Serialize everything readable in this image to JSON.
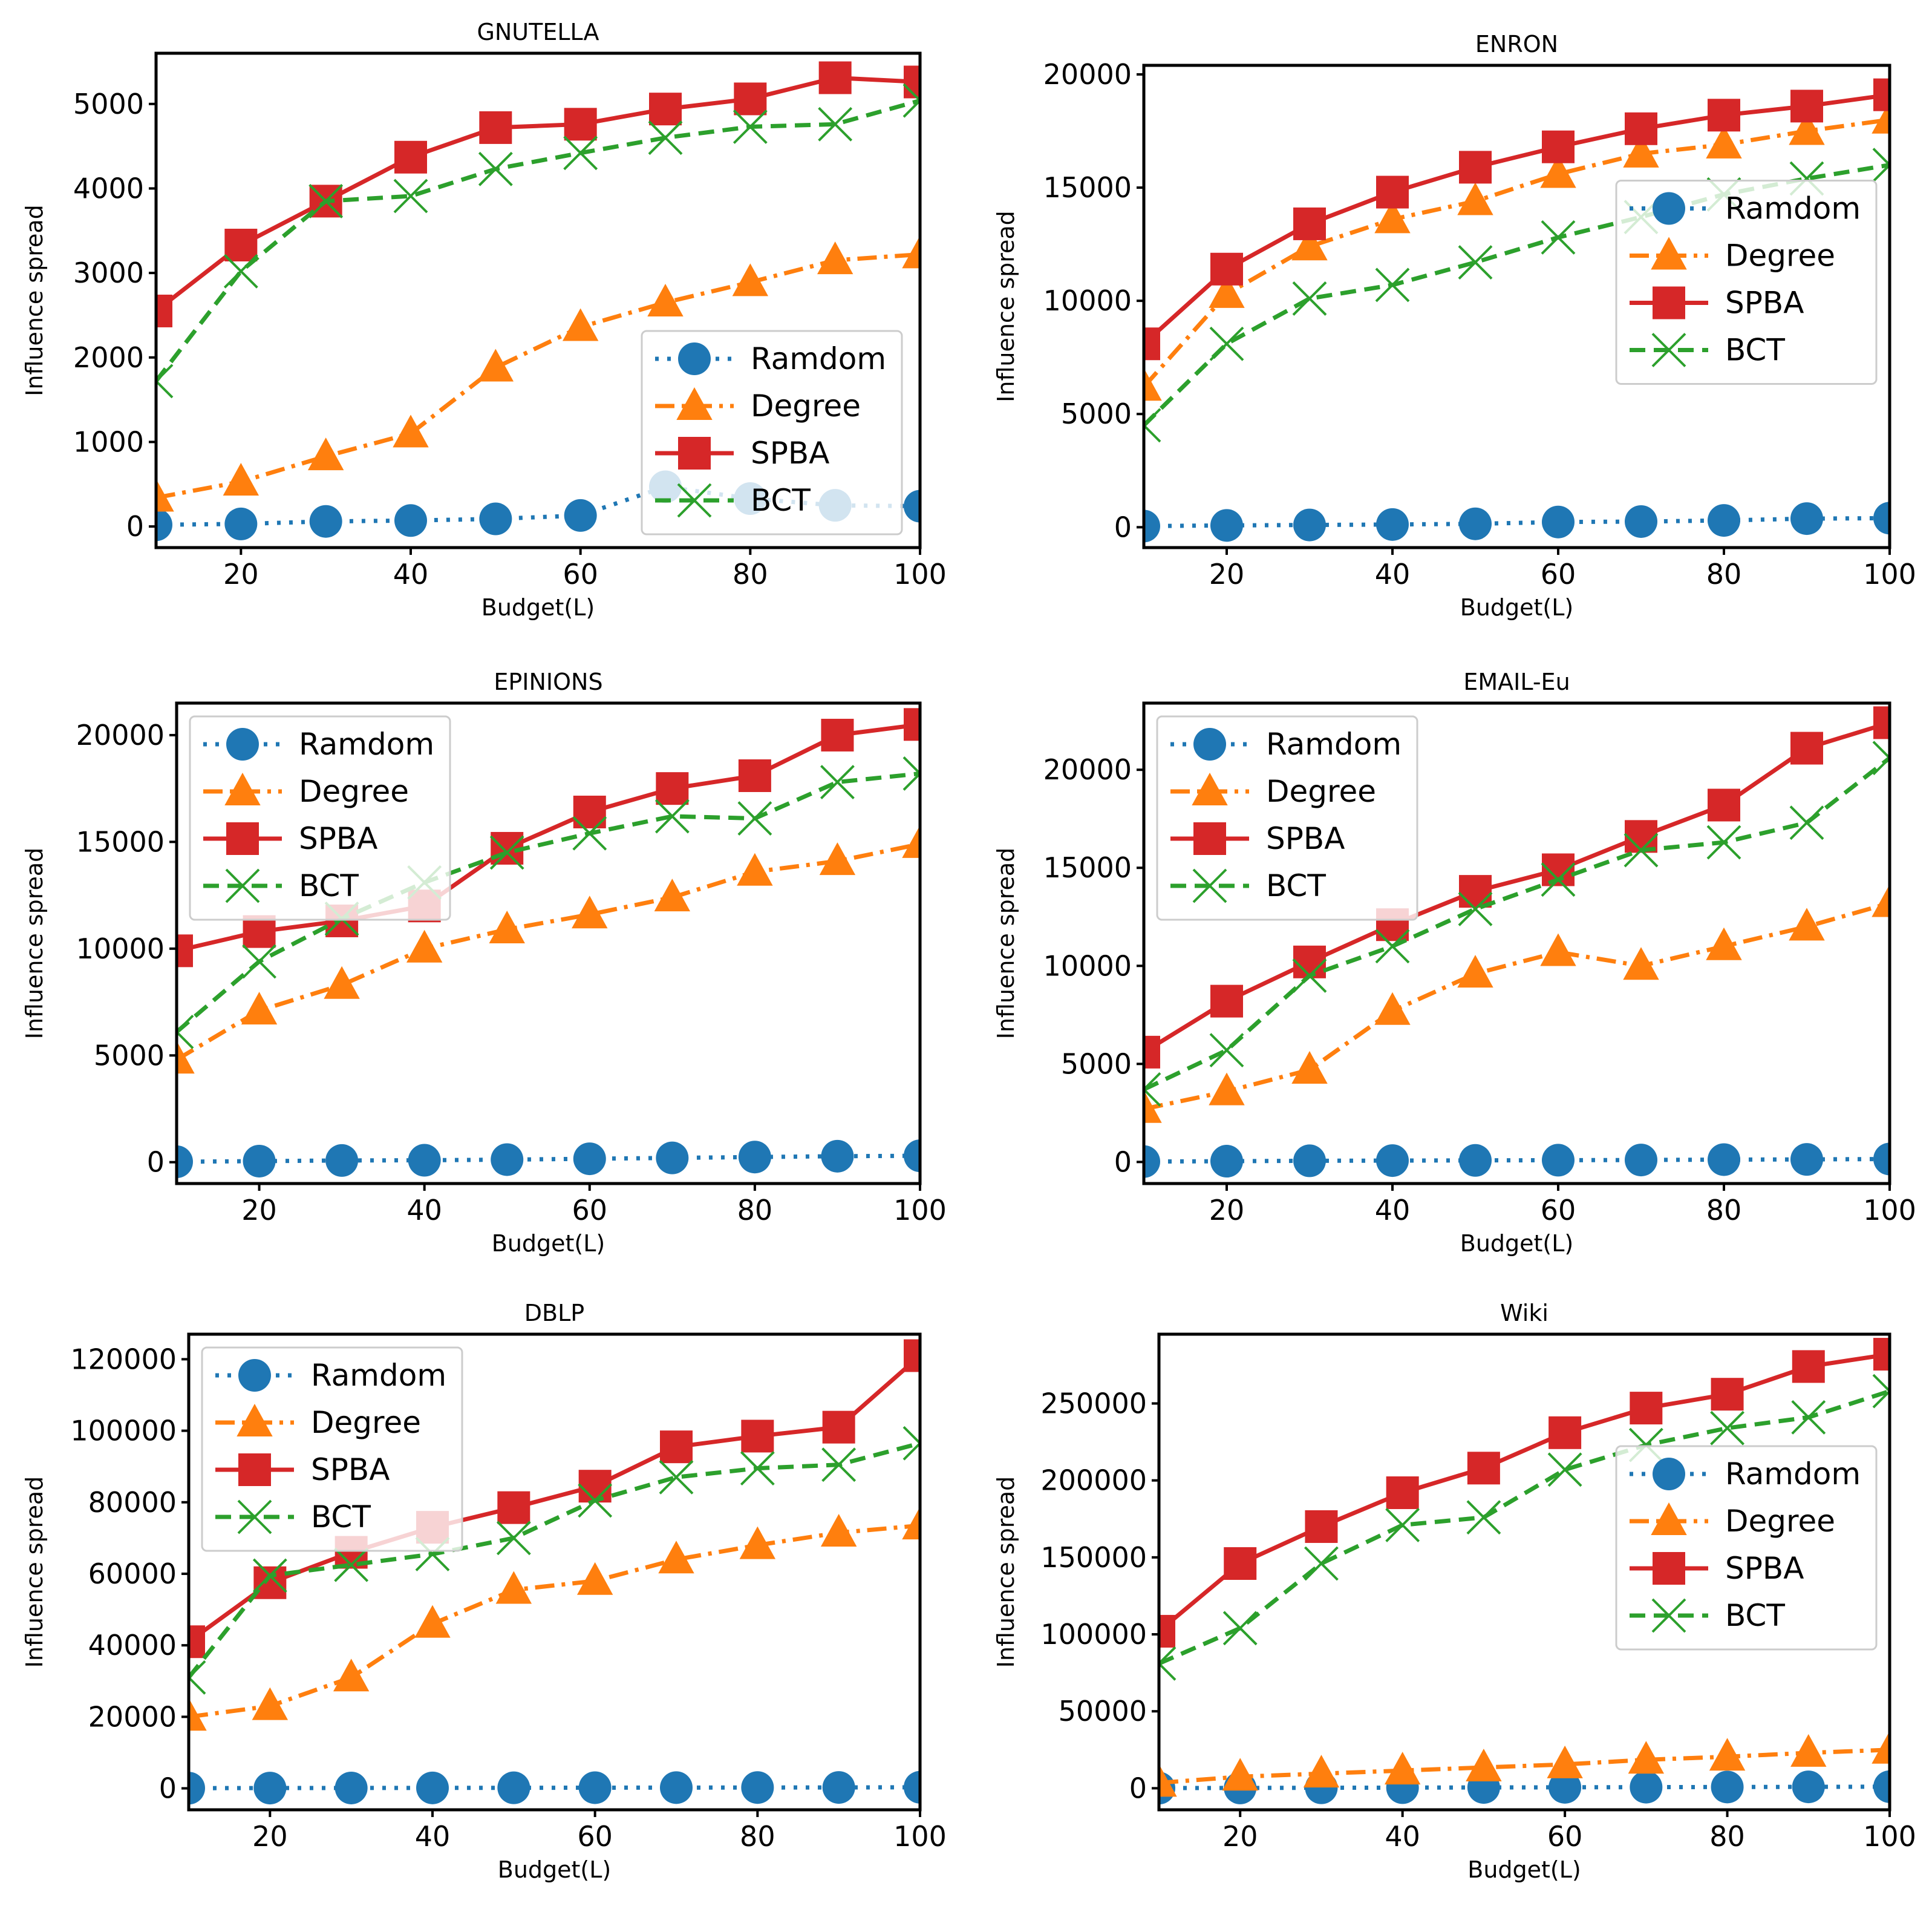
{
  "colors": {
    "Ramdom": "#1f77b4",
    "Degree": "#ff7f0e",
    "SPBA": "#d62728",
    "BCT": "#2ca02c"
  },
  "chart_data": [
    {
      "type": "line",
      "title": "GNUTELLA",
      "xlabel": "Budget(L)",
      "ylabel": "Influence spread",
      "x": [
        10,
        20,
        30,
        40,
        50,
        60,
        70,
        80,
        90,
        100
      ],
      "xlim": [
        10,
        100
      ],
      "ylim": [
        -250,
        5600
      ],
      "xticks": [
        20,
        40,
        60,
        80,
        100
      ],
      "yticks": [
        0,
        1000,
        2000,
        3000,
        4000,
        5000
      ],
      "legend_position": "lower-right",
      "series": [
        {
          "name": "Ramdom",
          "values": [
            20,
            30,
            60,
            70,
            90,
            130,
            470,
            330,
            250,
            240
          ]
        },
        {
          "name": "Degree",
          "values": [
            340,
            530,
            830,
            1100,
            1880,
            2360,
            2650,
            2890,
            3150,
            3220
          ]
        },
        {
          "name": "SPBA",
          "values": [
            2550,
            3330,
            3850,
            4370,
            4720,
            4760,
            4940,
            5060,
            5310,
            5260
          ]
        },
        {
          "name": "BCT",
          "values": [
            1720,
            3020,
            3850,
            3910,
            4230,
            4420,
            4600,
            4730,
            4760,
            5040
          ]
        }
      ]
    },
    {
      "type": "line",
      "title": "ENRON",
      "xlabel": "Budget(L)",
      "ylabel": "Influence spread",
      "x": [
        10,
        20,
        30,
        40,
        50,
        60,
        70,
        80,
        90,
        100
      ],
      "xlim": [
        10,
        100
      ],
      "ylim": [
        -900,
        20400
      ],
      "xticks": [
        20,
        40,
        60,
        80,
        100
      ],
      "yticks": [
        0,
        5000,
        10000,
        15000,
        20000
      ],
      "legend_position": "center-right",
      "series": [
        {
          "name": "Ramdom",
          "values": [
            50,
            80,
            100,
            120,
            150,
            230,
            250,
            300,
            380,
            400
          ]
        },
        {
          "name": "Degree",
          "values": [
            6200,
            10300,
            12400,
            13600,
            14400,
            15600,
            16500,
            16900,
            17500,
            18000
          ]
        },
        {
          "name": "SPBA",
          "values": [
            8100,
            11400,
            13400,
            14800,
            15900,
            16800,
            17600,
            18200,
            18600,
            19100
          ]
        },
        {
          "name": "BCT",
          "values": [
            4500,
            8100,
            10100,
            10700,
            11700,
            12800,
            13700,
            14700,
            15400,
            16000
          ]
        }
      ]
    },
    {
      "type": "line",
      "title": "EPINIONS",
      "xlabel": "Budget(L)",
      "ylabel": "Influence spread",
      "x": [
        10,
        20,
        30,
        40,
        50,
        60,
        70,
        80,
        90,
        100
      ],
      "xlim": [
        10,
        100
      ],
      "ylim": [
        -1000,
        21500
      ],
      "xticks": [
        20,
        40,
        60,
        80,
        100
      ],
      "yticks": [
        0,
        5000,
        10000,
        15000,
        20000
      ],
      "legend_position": "upper-left",
      "series": [
        {
          "name": "Ramdom",
          "values": [
            20,
            50,
            80,
            90,
            120,
            160,
            200,
            240,
            280,
            300
          ]
        },
        {
          "name": "Degree",
          "values": [
            4800,
            7100,
            8300,
            10000,
            10900,
            11600,
            12400,
            13600,
            14100,
            14900
          ]
        },
        {
          "name": "SPBA",
          "values": [
            9900,
            10800,
            11300,
            12000,
            14700,
            16400,
            17500,
            18100,
            20000,
            20500
          ]
        },
        {
          "name": "BCT",
          "values": [
            6100,
            9400,
            11400,
            13100,
            14500,
            15400,
            16200,
            16100,
            17800,
            18200
          ]
        }
      ]
    },
    {
      "type": "line",
      "title": "EMAIL-Eu",
      "xlabel": "Budget(L)",
      "ylabel": "Influence spread",
      "x": [
        10,
        20,
        30,
        40,
        50,
        60,
        70,
        80,
        90,
        100
      ],
      "xlim": [
        10,
        100
      ],
      "ylim": [
        -1100,
        23400
      ],
      "xticks": [
        20,
        40,
        60,
        80,
        100
      ],
      "yticks": [
        0,
        5000,
        10000,
        15000,
        20000
      ],
      "legend_position": "upper-left",
      "series": [
        {
          "name": "Ramdom",
          "values": [
            20,
            40,
            60,
            70,
            80,
            90,
            100,
            120,
            130,
            150
          ]
        },
        {
          "name": "Degree",
          "values": [
            2700,
            3600,
            4700,
            7700,
            9600,
            10700,
            10000,
            11000,
            12000,
            13200
          ]
        },
        {
          "name": "SPBA",
          "values": [
            5600,
            8200,
            10200,
            12100,
            13800,
            14900,
            16600,
            18200,
            21100,
            22400
          ]
        },
        {
          "name": "BCT",
          "values": [
            3700,
            5700,
            9500,
            11000,
            12900,
            14400,
            15900,
            16300,
            17300,
            20600
          ]
        }
      ]
    },
    {
      "type": "line",
      "title": "DBLP",
      "xlabel": "Budget(L)",
      "ylabel": "Influence spread",
      "x": [
        10,
        20,
        30,
        40,
        50,
        60,
        70,
        80,
        90,
        100
      ],
      "xlim": [
        10,
        100
      ],
      "ylim": [
        -6000,
        127000
      ],
      "xticks": [
        20,
        40,
        60,
        80,
        100
      ],
      "yticks": [
        0,
        20000,
        40000,
        60000,
        80000,
        100000,
        120000
      ],
      "legend_position": "upper-left",
      "series": [
        {
          "name": "Ramdom",
          "values": [
            50,
            80,
            100,
            120,
            150,
            180,
            200,
            220,
            250,
            300
          ]
        },
        {
          "name": "Degree",
          "values": [
            20000,
            23000,
            31000,
            46000,
            55500,
            58000,
            64000,
            68000,
            71500,
            73500
          ]
        },
        {
          "name": "SPBA",
          "values": [
            41000,
            57500,
            66000,
            73000,
            78500,
            84500,
            95500,
            98500,
            101000,
            121000
          ]
        },
        {
          "name": "BCT",
          "values": [
            31000,
            59500,
            62500,
            65500,
            70000,
            80500,
            87000,
            89500,
            90500,
            96500
          ]
        }
      ]
    },
    {
      "type": "line",
      "title": "Wiki",
      "xlabel": "Budget(L)",
      "ylabel": "Influence spread",
      "x": [
        10,
        20,
        30,
        40,
        50,
        60,
        70,
        80,
        90,
        100
      ],
      "xlim": [
        10,
        100
      ],
      "ylim": [
        -14000,
        295000
      ],
      "xticks": [
        20,
        40,
        60,
        80,
        100
      ],
      "yticks": [
        0,
        50000,
        100000,
        150000,
        200000,
        250000
      ],
      "legend_position": "center-right",
      "series": [
        {
          "name": "Ramdom",
          "values": [
            100,
            200,
            300,
            400,
            500,
            600,
            700,
            800,
            900,
            1000
          ]
        },
        {
          "name": "Degree",
          "values": [
            3500,
            7500,
            9500,
            11500,
            13500,
            15500,
            18500,
            20500,
            23000,
            25000
          ]
        },
        {
          "name": "SPBA",
          "values": [
            102000,
            146000,
            170000,
            192000,
            208000,
            231000,
            247000,
            256000,
            274000,
            282000
          ]
        },
        {
          "name": "BCT",
          "values": [
            81000,
            104000,
            146000,
            171000,
            176000,
            207000,
            223000,
            234000,
            241000,
            258000
          ]
        }
      ]
    }
  ]
}
